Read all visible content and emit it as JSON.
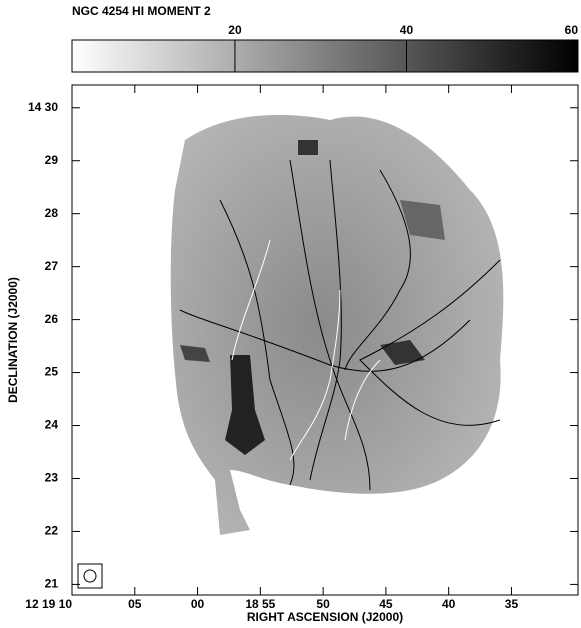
{
  "chart_data": {
    "type": "image",
    "title": "NGC 4254 HI MOMENT 2",
    "xlabel": "RIGHT ASCENSION (J2000)",
    "ylabel": "DECLINATION (J2000)",
    "colorbar": {
      "clim": [
        1,
        60
      ],
      "ticks": [
        20,
        40,
        60
      ]
    },
    "xlim": [
      70,
      29.7
    ],
    "xticks": [
      {
        "value": 70,
        "label": "12 19 10"
      },
      {
        "value": 65,
        "label": "05"
      },
      {
        "value": 60,
        "label": "00"
      },
      {
        "value": 55,
        "label": "18 55"
      },
      50,
      45,
      40,
      35
    ],
    "ylim": [
      20.8,
      30.43
    ],
    "yticks": [
      {
        "value": 30,
        "label": "14 30"
      },
      29,
      28,
      27,
      26,
      25,
      24,
      23,
      22,
      21
    ]
  }
}
